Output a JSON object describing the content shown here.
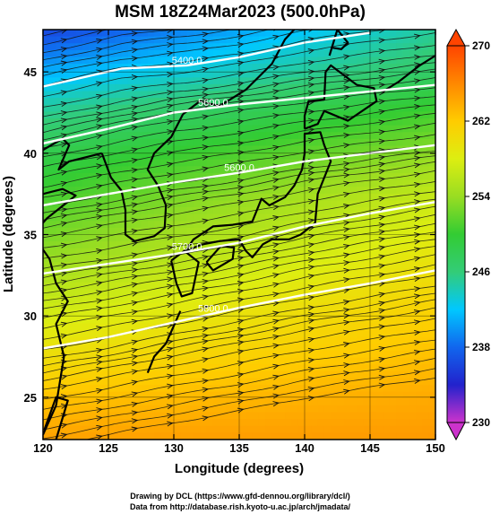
{
  "chart_data": {
    "type": "heatmap",
    "title": "MSM 18Z24Mar2023 (500.0hPa)",
    "xlabel": "Longitude (degrees)",
    "ylabel": "Latitude  (degrees)",
    "xlim": [
      120,
      150
    ],
    "ylim": [
      22.4,
      47.6
    ],
    "x_ticks": [
      "120",
      "125",
      "130",
      "135",
      "140",
      "145",
      "150"
    ],
    "y_ticks": [
      "25",
      "30",
      "35",
      "40",
      "45"
    ],
    "colorbar": {
      "min": 230,
      "max": 270,
      "ticks": [
        "230",
        "238",
        "246",
        "254",
        "262",
        "270"
      ],
      "colors": [
        "#cc33cc",
        "#2222cc",
        "#1166ee",
        "#00c8ff",
        "#33cc77",
        "#33cc33",
        "#99dd22",
        "#ddee11",
        "#ffcc00",
        "#ff8800",
        "#ff4400"
      ]
    },
    "temperature_field": {
      "lats": [
        22.4,
        25,
        28,
        31,
        34,
        37,
        40,
        43,
        45,
        47.6
      ],
      "west_k": [
        264.5,
        262.5,
        259.5,
        256.5,
        253.5,
        251,
        248.5,
        244.5,
        241,
        236
      ],
      "east_k": [
        265,
        264,
        262.5,
        261,
        259,
        257,
        253.5,
        250,
        247,
        245
      ]
    },
    "contours": [
      {
        "label": "5400.0",
        "points": [
          [
            120,
            44.1
          ],
          [
            126,
            45.2
          ],
          [
            131,
            45.4
          ],
          [
            135,
            45.9
          ],
          [
            140,
            46.8
          ],
          [
            145,
            47.4
          ]
        ]
      },
      {
        "label": "5600.0",
        "points": [
          [
            120,
            40.6
          ],
          [
            125,
            41.5
          ],
          [
            130,
            42.5
          ],
          [
            135,
            43.0
          ],
          [
            140,
            43.4
          ],
          [
            145,
            43.8
          ],
          [
            150,
            44.2
          ]
        ]
      },
      {
        "label": "5600.0",
        "points": [
          [
            120,
            36.8
          ],
          [
            125,
            37.5
          ],
          [
            130,
            38.2
          ],
          [
            135,
            38.8
          ],
          [
            140,
            39.5
          ],
          [
            145,
            40.0
          ],
          [
            150,
            40.5
          ]
        ]
      },
      {
        "label": "5700.0",
        "points": [
          [
            120,
            32.6
          ],
          [
            125,
            33.2
          ],
          [
            130,
            33.8
          ],
          [
            135,
            34.5
          ],
          [
            140,
            35.5
          ],
          [
            145,
            36.3
          ],
          [
            150,
            37.0
          ]
        ]
      },
      {
        "label": "5800.0",
        "points": [
          [
            120,
            28.0
          ],
          [
            125,
            28.7
          ],
          [
            130,
            29.6
          ],
          [
            135,
            30.5
          ],
          [
            140,
            31.3
          ],
          [
            145,
            32.0
          ],
          [
            150,
            32.8
          ]
        ]
      }
    ],
    "coastlines": [
      {
        "name": "korean-peninsula",
        "points": [
          [
            124.5,
            40.0
          ],
          [
            125.2,
            38.5
          ],
          [
            126.0,
            37.7
          ],
          [
            126.3,
            36.5
          ],
          [
            126.3,
            35.0
          ],
          [
            127.0,
            34.6
          ],
          [
            128.5,
            34.9
          ],
          [
            129.3,
            35.4
          ],
          [
            129.4,
            36.8
          ],
          [
            128.8,
            38.0
          ],
          [
            128.0,
            39.0
          ],
          [
            128.5,
            40.0
          ],
          [
            129.8,
            41.0
          ],
          [
            130.7,
            42.4
          ]
        ]
      },
      {
        "name": "china-coast",
        "points": [
          [
            120.0,
            22.7
          ],
          [
            121.0,
            24.5
          ],
          [
            121.6,
            27.5
          ],
          [
            121.0,
            29.5
          ],
          [
            121.9,
            30.9
          ],
          [
            121.0,
            32.0
          ],
          [
            120.5,
            33.5
          ],
          [
            119.2,
            35.0
          ],
          [
            120.3,
            36.0
          ],
          [
            122.5,
            37.4
          ],
          [
            121.5,
            37.8
          ],
          [
            120.0,
            37.5
          ]
        ]
      },
      {
        "name": "liaodong",
        "points": [
          [
            120.0,
            40.2
          ],
          [
            121.5,
            40.9
          ],
          [
            122.0,
            40.5
          ],
          [
            121.2,
            39.0
          ],
          [
            122.0,
            39.5
          ],
          [
            124.5,
            40.0
          ]
        ]
      },
      {
        "name": "kyushu",
        "points": [
          [
            129.8,
            33.4
          ],
          [
            130.8,
            34.0
          ],
          [
            131.9,
            33.3
          ],
          [
            131.4,
            31.4
          ],
          [
            130.6,
            31.2
          ],
          [
            130.2,
            32.0
          ],
          [
            129.8,
            33.4
          ]
        ]
      },
      {
        "name": "shikoku",
        "points": [
          [
            132.5,
            33.3
          ],
          [
            133.6,
            34.3
          ],
          [
            134.6,
            34.2
          ],
          [
            134.5,
            33.5
          ],
          [
            133.0,
            32.8
          ],
          [
            132.5,
            33.3
          ]
        ]
      },
      {
        "name": "honshu",
        "points": [
          [
            130.9,
            34.0
          ],
          [
            132.2,
            34.4
          ],
          [
            133.5,
            34.6
          ],
          [
            135.0,
            34.7
          ],
          [
            135.5,
            34.0
          ],
          [
            136.0,
            33.6
          ],
          [
            136.8,
            34.4
          ],
          [
            137.5,
            34.7
          ],
          [
            138.8,
            34.7
          ],
          [
            139.7,
            35.0
          ],
          [
            140.8,
            35.7
          ],
          [
            141.0,
            37.5
          ],
          [
            141.5,
            38.5
          ],
          [
            142.0,
            39.5
          ],
          [
            141.5,
            40.5
          ],
          [
            141.2,
            41.3
          ],
          [
            140.0,
            41.2
          ],
          [
            140.0,
            40.0
          ],
          [
            139.8,
            39.0
          ],
          [
            139.2,
            38.0
          ],
          [
            138.5,
            37.3
          ],
          [
            137.3,
            36.8
          ],
          [
            136.7,
            37.2
          ],
          [
            136.0,
            35.8
          ],
          [
            134.5,
            35.6
          ],
          [
            133.0,
            35.5
          ],
          [
            131.5,
            34.7
          ],
          [
            130.9,
            34.0
          ]
        ]
      },
      {
        "name": "hokkaido",
        "points": [
          [
            140.0,
            41.5
          ],
          [
            141.0,
            41.8
          ],
          [
            141.5,
            42.6
          ],
          [
            143.3,
            42.0
          ],
          [
            145.5,
            43.2
          ],
          [
            145.3,
            44.0
          ],
          [
            144.0,
            44.2
          ],
          [
            142.0,
            45.4
          ],
          [
            141.6,
            45.0
          ],
          [
            141.5,
            43.3
          ],
          [
            140.3,
            43.2
          ],
          [
            140.0,
            42.3
          ],
          [
            140.0,
            41.5
          ]
        ]
      },
      {
        "name": "sakhalin",
        "points": [
          [
            141.9,
            46.0
          ],
          [
            142.5,
            47.6
          ],
          [
            143.3,
            46.8
          ],
          [
            142.8,
            46.4
          ],
          [
            142.0,
            46.5
          ]
        ]
      },
      {
        "name": "kuril",
        "points": [
          [
            146.0,
            43.8
          ],
          [
            147.2,
            44.4
          ],
          [
            148.8,
            45.4
          ],
          [
            150.0,
            46.0
          ]
        ]
      },
      {
        "name": "primorye",
        "points": [
          [
            130.7,
            42.4
          ],
          [
            132.0,
            43.2
          ],
          [
            133.5,
            42.9
          ],
          [
            135.5,
            43.9
          ],
          [
            137.5,
            45.5
          ],
          [
            138.5,
            47.0
          ],
          [
            139.2,
            47.6
          ]
        ]
      },
      {
        "name": "ryukyu-islands",
        "points": [
          [
            128.0,
            26.5
          ],
          [
            128.5,
            27.5
          ],
          [
            129.4,
            28.3
          ],
          [
            130.5,
            30.3
          ]
        ]
      },
      {
        "name": "taiwan",
        "points": [
          [
            120.1,
            23.0
          ],
          [
            121.0,
            25.0
          ],
          [
            121.9,
            24.8
          ],
          [
            121.0,
            22.4
          ]
        ]
      }
    ]
  },
  "credits": {
    "line1": "Drawing by DCL (https://www.gfd-dennou.org/library/dcl/)",
    "line2": "Data from http://database.rish.kyoto-u.ac.jp/arch/jmadata/"
  }
}
